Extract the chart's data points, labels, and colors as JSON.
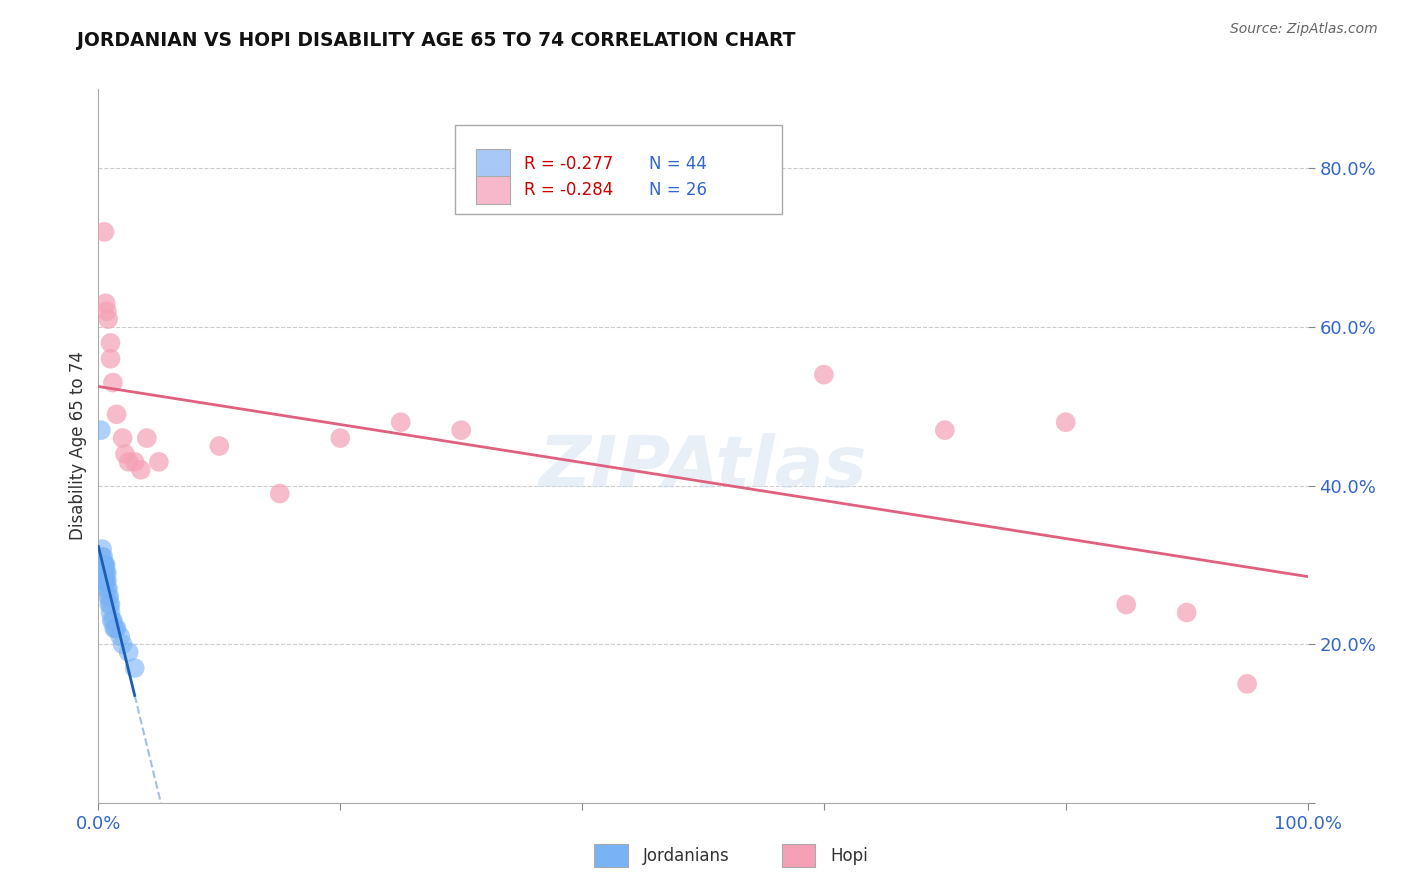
{
  "title": "JORDANIAN VS HOPI DISABILITY AGE 65 TO 74 CORRELATION CHART",
  "source": "Source: ZipAtlas.com",
  "ylabel": "Disability Age 65 to 74",
  "xlim": [
    0.0,
    1.0
  ],
  "ylim": [
    0.0,
    0.9
  ],
  "ytick_positions": [
    0.0,
    0.2,
    0.4,
    0.6,
    0.8
  ],
  "yticklabels": [
    "",
    "20.0%",
    "40.0%",
    "60.0%",
    "80.0%"
  ],
  "grid_color": "#cccccc",
  "background_color": "#ffffff",
  "legend_R1": "R = -0.277",
  "legend_N1": "N = 44",
  "legend_R2": "R = -0.284",
  "legend_N2": "N = 26",
  "legend_color1": "#a8c8f8",
  "legend_color2": "#f8b8cc",
  "jordanian_color": "#7ab3f5",
  "hopi_color": "#f5a0b5",
  "trendline_jordanian_color": "#1a5fb4",
  "trendline_hopi_color": "#e06080",
  "watermark": "ZIPAtlas",
  "jordanians_x": [
    0.002,
    0.003,
    0.003,
    0.003,
    0.003,
    0.003,
    0.003,
    0.004,
    0.004,
    0.004,
    0.004,
    0.004,
    0.004,
    0.004,
    0.005,
    0.005,
    0.005,
    0.005,
    0.005,
    0.005,
    0.005,
    0.005,
    0.006,
    0.006,
    0.006,
    0.006,
    0.007,
    0.007,
    0.007,
    0.008,
    0.008,
    0.009,
    0.009,
    0.01,
    0.01,
    0.011,
    0.012,
    0.013,
    0.014,
    0.015,
    0.018,
    0.02,
    0.025,
    0.03
  ],
  "jordanians_y": [
    0.47,
    0.28,
    0.3,
    0.32,
    0.3,
    0.29,
    0.31,
    0.29,
    0.3,
    0.28,
    0.31,
    0.3,
    0.29,
    0.28,
    0.29,
    0.3,
    0.28,
    0.3,
    0.29,
    0.28,
    0.3,
    0.29,
    0.28,
    0.3,
    0.29,
    0.28,
    0.27,
    0.28,
    0.29,
    0.27,
    0.26,
    0.26,
    0.25,
    0.25,
    0.24,
    0.23,
    0.23,
    0.22,
    0.22,
    0.22,
    0.21,
    0.2,
    0.19,
    0.17
  ],
  "hopi_x": [
    0.005,
    0.006,
    0.007,
    0.008,
    0.01,
    0.01,
    0.012,
    0.015,
    0.02,
    0.022,
    0.025,
    0.03,
    0.035,
    0.04,
    0.05,
    0.1,
    0.15,
    0.2,
    0.25,
    0.3,
    0.6,
    0.7,
    0.8,
    0.85,
    0.9,
    0.95
  ],
  "hopi_y": [
    0.72,
    0.63,
    0.62,
    0.61,
    0.58,
    0.56,
    0.53,
    0.49,
    0.46,
    0.44,
    0.43,
    0.43,
    0.42,
    0.46,
    0.43,
    0.45,
    0.39,
    0.46,
    0.48,
    0.47,
    0.54,
    0.47,
    0.48,
    0.25,
    0.24,
    0.15
  ]
}
